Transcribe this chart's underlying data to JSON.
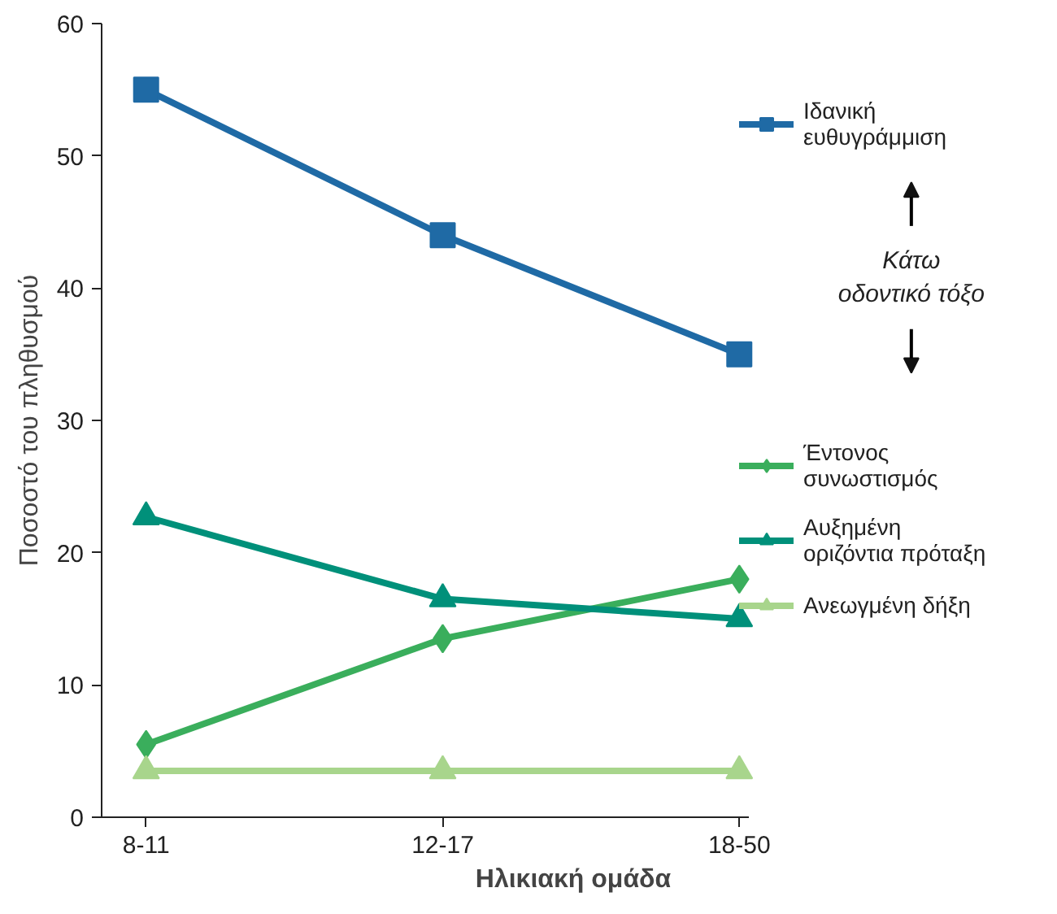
{
  "chart_data": {
    "type": "line",
    "xlabel": "Ηλικιακή ομάδα",
    "ylabel": "Ποσοστό του πληθυσμού",
    "categories": [
      "8-11",
      "12-17",
      "18-50"
    ],
    "ylim": [
      0,
      60
    ],
    "yticks": [
      0,
      10,
      20,
      30,
      40,
      50,
      60
    ],
    "grid": false,
    "legend": "right",
    "annotations": [
      "Κάτω οδοντικό τόξο"
    ],
    "series": [
      {
        "name": "Ιδανική ευθυγράμμιση",
        "color": "#1f6aa5",
        "marker": "square",
        "values": [
          55,
          44,
          35
        ]
      },
      {
        "name": "Έντονος συνωστισμός",
        "color": "#3aae5c",
        "marker": "diamond",
        "values": [
          5.5,
          13.5,
          18
        ]
      },
      {
        "name": "Αυξημένη οριζόντια πρόταξη",
        "color": "#00907a",
        "marker": "triangle",
        "values": [
          22.7,
          16.5,
          15
        ]
      },
      {
        "name": "Ανεωγμένη δήξη",
        "color": "#a8d58c",
        "marker": "triangle",
        "values": [
          3.5,
          3.5,
          3.5
        ]
      }
    ]
  }
}
